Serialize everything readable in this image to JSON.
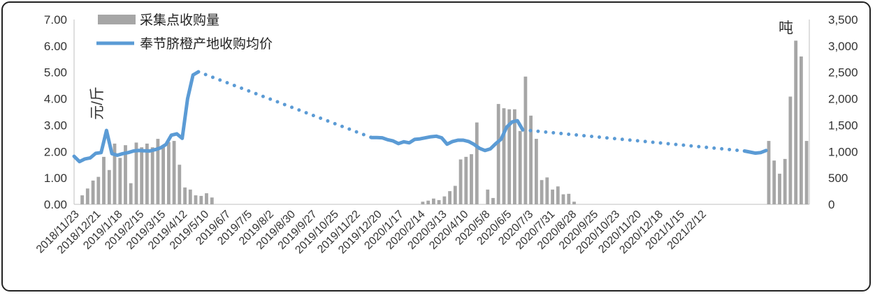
{
  "chart_data": {
    "type": "bar+line",
    "legend": {
      "bar_label": "采集点收购量",
      "line_label": "奉节脐橙产地收购均价",
      "placement": "top-left"
    },
    "left_axis": {
      "label": "元/斤",
      "min": 0,
      "max": 7,
      "step": 1,
      "tick_labels": [
        "0.00",
        "1.00",
        "2.00",
        "3.00",
        "4.00",
        "5.00",
        "6.00",
        "7.00"
      ]
    },
    "right_axis": {
      "label": "吨",
      "min": 0,
      "max": 3500,
      "step": 500,
      "tick_labels": [
        "0",
        "500",
        "1,000",
        "1,500",
        "2,000",
        "2,500",
        "3,000",
        "3,500"
      ]
    },
    "x_tick_labels": [
      "2018/11/23",
      "2018/12/21",
      "2019/1/18",
      "2019/2/15",
      "2019/3/15",
      "2019/4/12",
      "2019/5/10",
      "2019/6/7",
      "2019/7/5",
      "2019/8/2",
      "2019/8/30",
      "2019/9/27",
      "2019/10/25",
      "2019/11/22",
      "2019/12/20",
      "2020/1/17",
      "2020/2/14",
      "2020/3/13",
      "2020/4/10",
      "2020/5/8",
      "2020/6/5",
      "2020/7/3",
      "2020/7/31",
      "2020/8/28",
      "2020/9/25",
      "2020/10/23",
      "2020/11/20",
      "2020/12/18",
      "2021/1/15",
      "2021/2/12"
    ],
    "colors": {
      "bar": "#a6a6a6",
      "line": "#5b9bd5"
    },
    "bars_week_index": [
      [
        1,
        170
      ],
      [
        2,
        300
      ],
      [
        3,
        450
      ],
      [
        4,
        520
      ],
      [
        5,
        900
      ],
      [
        6,
        650
      ],
      [
        7,
        1150
      ],
      [
        8,
        880
      ],
      [
        9,
        1120
      ],
      [
        10,
        400
      ],
      [
        11,
        1170
      ],
      [
        12,
        1080
      ],
      [
        13,
        1150
      ],
      [
        14,
        1080
      ],
      [
        15,
        1240
      ],
      [
        16,
        1100
      ],
      [
        17,
        1180
      ],
      [
        18,
        1200
      ],
      [
        19,
        750
      ],
      [
        20,
        320
      ],
      [
        21,
        280
      ],
      [
        22,
        170
      ],
      [
        23,
        160
      ],
      [
        24,
        210
      ],
      [
        25,
        130
      ],
      [
        64,
        50
      ],
      [
        65,
        70
      ],
      [
        66,
        110
      ],
      [
        67,
        80
      ],
      [
        68,
        150
      ],
      [
        69,
        250
      ],
      [
        70,
        350
      ],
      [
        71,
        850
      ],
      [
        72,
        900
      ],
      [
        73,
        950
      ],
      [
        74,
        1550
      ],
      [
        76,
        280
      ],
      [
        77,
        120
      ],
      [
        78,
        1900
      ],
      [
        79,
        1820
      ],
      [
        80,
        1800
      ],
      [
        81,
        1800
      ],
      [
        82,
        1390
      ],
      [
        83,
        2420
      ],
      [
        84,
        1680
      ],
      [
        85,
        1240
      ],
      [
        86,
        460
      ],
      [
        87,
        510
      ],
      [
        88,
        280
      ],
      [
        89,
        340
      ],
      [
        90,
        190
      ],
      [
        91,
        200
      ],
      [
        92,
        50
      ],
      [
        128,
        1200
      ],
      [
        129,
        830
      ],
      [
        130,
        580
      ],
      [
        131,
        860
      ],
      [
        132,
        2040
      ],
      [
        133,
        3100
      ],
      [
        134,
        2800
      ],
      [
        135,
        1200
      ]
    ],
    "price_solid_segments": [
      [
        [
          0,
          1.82
        ],
        [
          1,
          1.62
        ],
        [
          2,
          1.72
        ],
        [
          3,
          1.76
        ],
        [
          4,
          1.93
        ],
        [
          5,
          1.96
        ],
        [
          6,
          2.8
        ],
        [
          7,
          1.92
        ],
        [
          8,
          1.86
        ],
        [
          9,
          1.92
        ],
        [
          10,
          1.96
        ],
        [
          11,
          2.02
        ],
        [
          12,
          2.04
        ],
        [
          13,
          2.03
        ],
        [
          14,
          2.02
        ],
        [
          15,
          2.07
        ],
        [
          16,
          2.14
        ],
        [
          17,
          2.27
        ],
        [
          18,
          2.62
        ],
        [
          19,
          2.67
        ],
        [
          20,
          2.5
        ],
        [
          21,
          4.0
        ],
        [
          22,
          4.9
        ],
        [
          23,
          5.02
        ]
      ],
      [
        [
          55,
          2.53
        ],
        [
          56,
          2.53
        ],
        [
          57,
          2.52
        ],
        [
          58,
          2.45
        ],
        [
          59,
          2.4
        ],
        [
          60,
          2.3
        ],
        [
          61,
          2.37
        ],
        [
          62,
          2.33
        ],
        [
          63,
          2.46
        ],
        [
          64,
          2.48
        ],
        [
          65,
          2.52
        ],
        [
          66,
          2.56
        ],
        [
          67,
          2.58
        ],
        [
          68,
          2.52
        ],
        [
          69,
          2.28
        ],
        [
          70,
          2.38
        ],
        [
          71,
          2.43
        ],
        [
          72,
          2.43
        ],
        [
          73,
          2.38
        ],
        [
          74,
          2.27
        ],
        [
          75,
          2.12
        ],
        [
          76,
          2.04
        ],
        [
          77,
          2.1
        ],
        [
          78,
          2.3
        ],
        [
          79,
          2.47
        ],
        [
          80,
          2.92
        ],
        [
          81,
          3.12
        ],
        [
          82,
          3.17
        ],
        [
          83,
          2.82
        ]
      ],
      [
        [
          124,
          2.02
        ],
        [
          125,
          1.98
        ],
        [
          126,
          1.94
        ],
        [
          127,
          1.96
        ],
        [
          128,
          2.04
        ]
      ]
    ],
    "price_dotted_segments": [
      [
        [
          23,
          5.02
        ],
        [
          55,
          2.53
        ]
      ],
      [
        [
          83,
          2.82
        ],
        [
          124,
          2.02
        ]
      ]
    ]
  }
}
